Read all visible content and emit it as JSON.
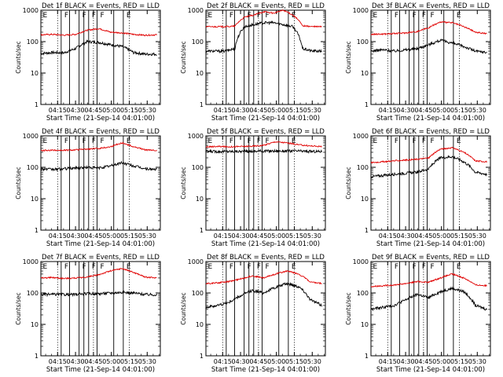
{
  "chart_data": {
    "type": "line",
    "layout": "3x3 grid",
    "panels": [
      {
        "title": "Det 1f BLACK = Events, RED = LLD",
        "profile": "peak",
        "events": {
          "base": 45,
          "vals": [
            42,
            45,
            44,
            60,
            100,
            95,
            80,
            70,
            45,
            40,
            40
          ]
        },
        "lld": {
          "base": 170,
          "vals": [
            165,
            170,
            160,
            170,
            230,
            260,
            200,
            190,
            170,
            160,
            165
          ]
        }
      },
      {
        "title": "Det 2f BLACK = Events, RED = LLD",
        "profile": "plateau",
        "events": {
          "vals": [
            50,
            50,
            50,
            60,
            300,
            350,
            400,
            400,
            350,
            300,
            60,
            50,
            50
          ]
        },
        "lld": {
          "vals": [
            300,
            300,
            300,
            310,
            600,
            700,
            900,
            800,
            1000,
            700,
            320,
            300,
            300
          ]
        }
      },
      {
        "title": "Det 3f BLACK = Events, RED = LLD",
        "profile": "peak",
        "events": {
          "vals": [
            50,
            55,
            50,
            55,
            60,
            80,
            110,
            90,
            70,
            50,
            45
          ]
        },
        "lld": {
          "vals": [
            170,
            175,
            180,
            190,
            210,
            280,
            420,
            400,
            300,
            200,
            180
          ]
        }
      },
      {
        "title": "Det 4f BLACK = Events, RED = LLD",
        "profile": "bump",
        "events": {
          "vals": [
            90,
            85,
            90,
            95,
            100,
            95,
            110,
            140,
            110,
            90,
            85
          ]
        },
        "lld": {
          "vals": [
            340,
            350,
            350,
            360,
            380,
            400,
            450,
            600,
            450,
            360,
            340
          ]
        }
      },
      {
        "title": "Det 5f BLACK = Events, RED = LLD",
        "profile": "flat",
        "events": {
          "vals": [
            320,
            320,
            320,
            320,
            325,
            330,
            330,
            330,
            330,
            320,
            320
          ]
        },
        "lld": {
          "vals": [
            450,
            460,
            450,
            460,
            470,
            500,
            650,
            600,
            520,
            480,
            460
          ]
        }
      },
      {
        "title": "Det 6f BLACK = Events, RED = LLD",
        "profile": "peak",
        "events": {
          "vals": [
            50,
            55,
            60,
            65,
            70,
            90,
            200,
            220,
            150,
            70,
            60
          ]
        },
        "lld": {
          "vals": [
            140,
            150,
            160,
            170,
            180,
            200,
            380,
            420,
            300,
            160,
            150
          ]
        }
      },
      {
        "title": "Det 7f BLACK = Events, RED = LLD",
        "profile": "bump",
        "events": {
          "vals": [
            90,
            90,
            90,
            90,
            95,
            95,
            100,
            105,
            100,
            90,
            88
          ]
        },
        "lld": {
          "vals": [
            300,
            310,
            290,
            300,
            320,
            380,
            500,
            600,
            450,
            320,
            300
          ]
        }
      },
      {
        "title": "Det 8f BLACK = Events, RED = LLD",
        "profile": "peak",
        "events": {
          "vals": [
            35,
            40,
            50,
            80,
            120,
            100,
            150,
            200,
            160,
            60,
            40
          ]
        },
        "lld": {
          "vals": [
            200,
            210,
            230,
            280,
            350,
            300,
            400,
            500,
            400,
            220,
            200
          ]
        }
      },
      {
        "title": "Det 9f BLACK = Events, RED = LLD",
        "profile": "peak",
        "events": {
          "vals": [
            30,
            35,
            40,
            60,
            90,
            70,
            110,
            140,
            110,
            40,
            30
          ]
        },
        "lld": {
          "vals": [
            160,
            170,
            180,
            200,
            230,
            220,
            300,
            400,
            300,
            180,
            170
          ]
        }
      }
    ],
    "series": [
      {
        "color": "#000000",
        "label": "Events"
      },
      {
        "color": "#e00000",
        "label": "LLD"
      }
    ],
    "yscale": "log",
    "ylim": [
      1,
      1000
    ],
    "yticks": [
      "1",
      "10",
      "100",
      "1000"
    ],
    "ylabel": "Counts/sec",
    "xlim": [
      "04:01:00",
      "05:41:00"
    ],
    "xticks": [
      "04:15",
      "04:30",
      "04:45",
      "05:00",
      "05:15",
      "05:30"
    ],
    "xlabel": "Start Time (21-Sep-14 04:01:00)",
    "segment_labels": [
      "E",
      "F",
      "F",
      "F",
      "F",
      "E"
    ],
    "dotted_lines_min": [
      14,
      44,
      74
    ],
    "solid_lines_min": [
      17,
      24,
      32,
      36,
      40,
      47,
      61,
      69
    ]
  }
}
